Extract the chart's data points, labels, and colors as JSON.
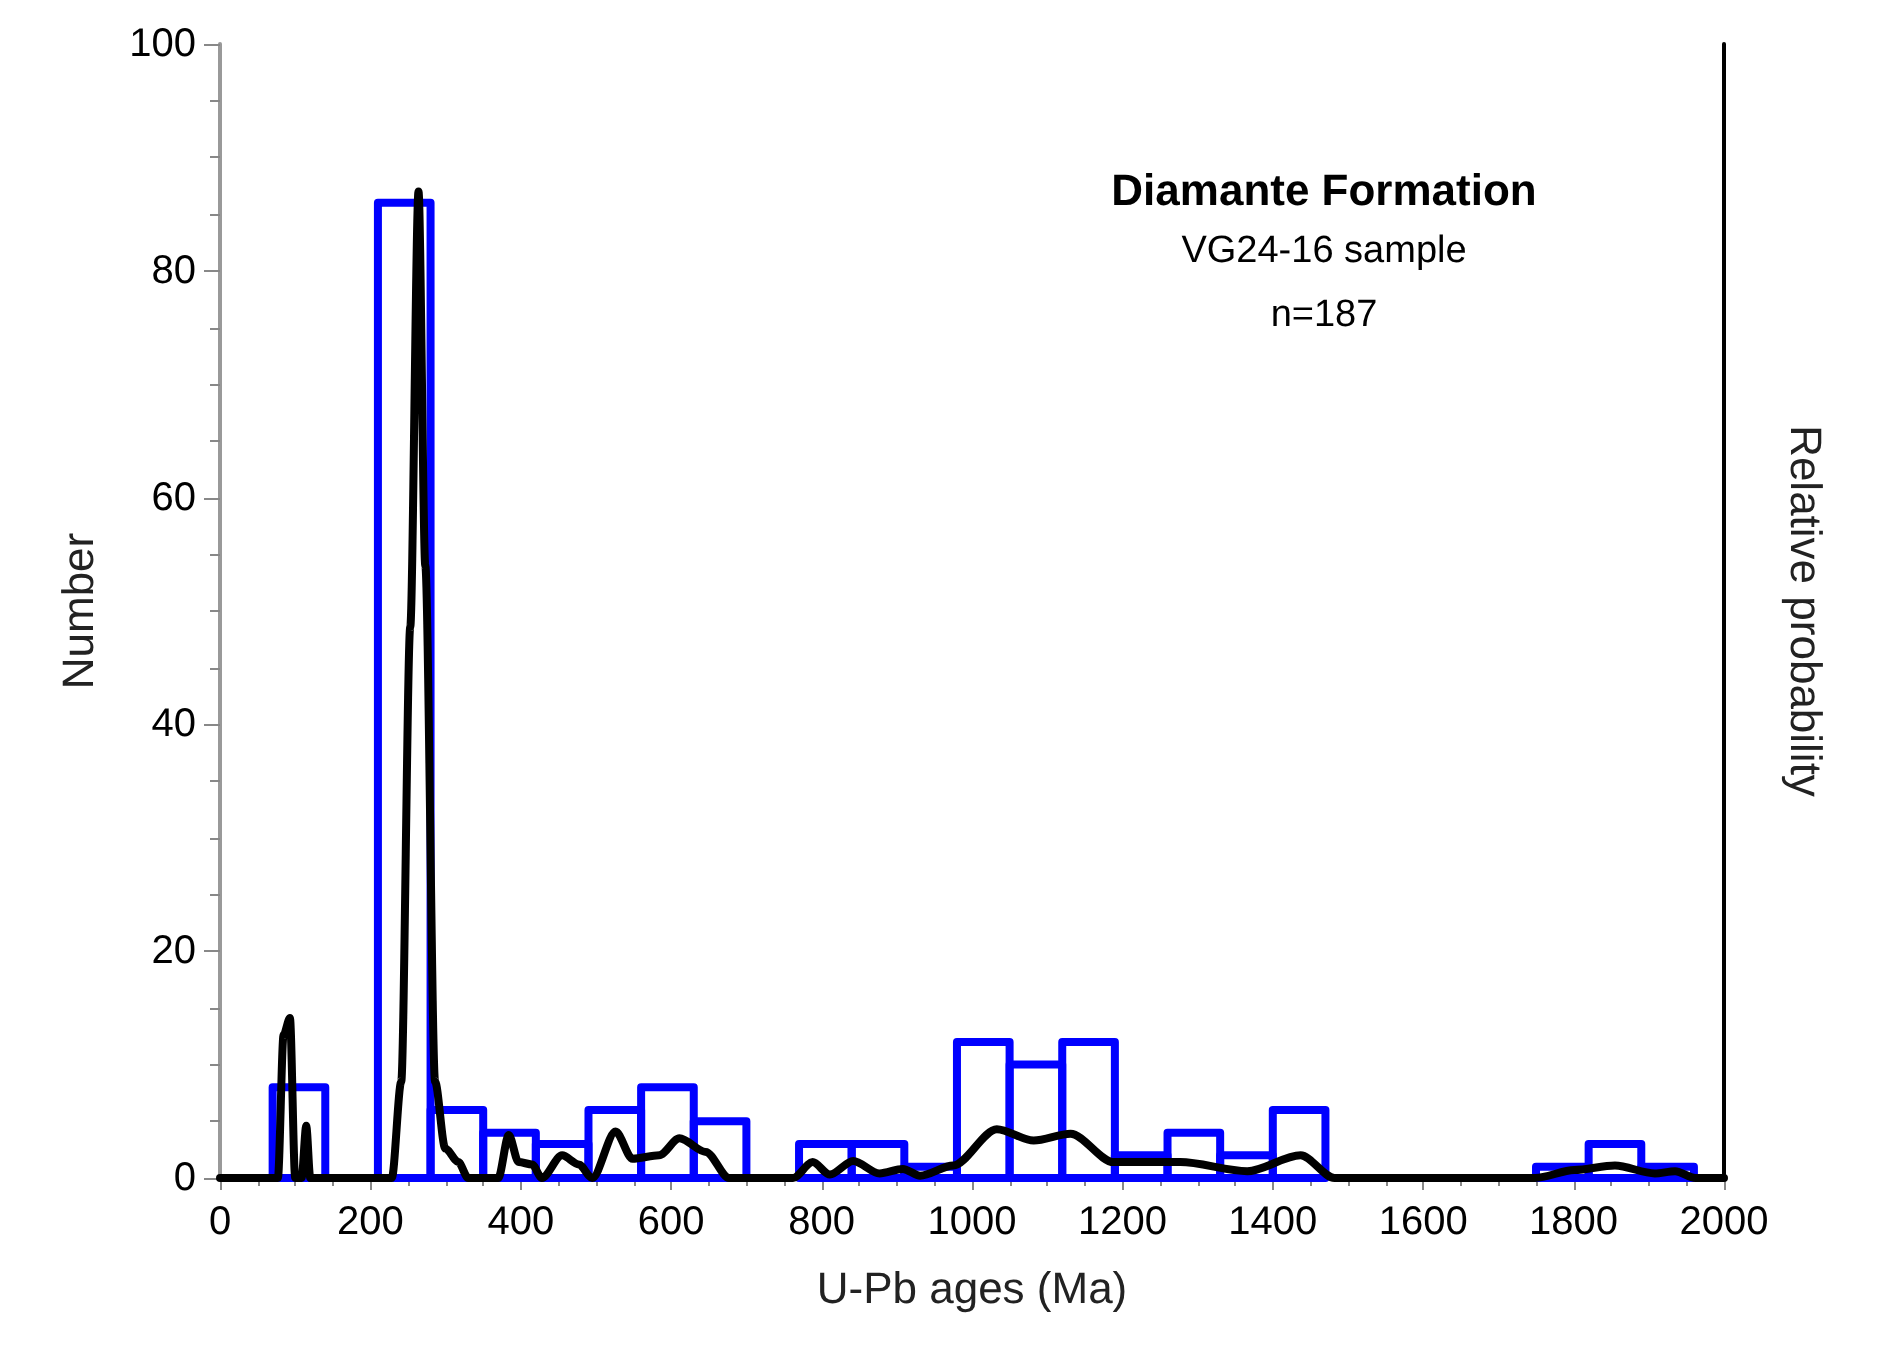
{
  "chart_data": {
    "type": "histogram",
    "annotations": [
      "Diamante Formation",
      "VG24-16 sample",
      "n=187"
    ],
    "xlabel": "U-Pb ages (Ma)",
    "ylabel": "Number",
    "y2label": "Relative probability",
    "bins": [
      0,
      70,
      140,
      210,
      280,
      350,
      420,
      490,
      560,
      630,
      700,
      770,
      840,
      910,
      980,
      1050,
      1120,
      1190,
      1260,
      1330,
      1400,
      1470,
      1540,
      1610,
      1680,
      1750,
      1820,
      1890,
      1960
    ],
    "values": [
      0,
      8,
      0,
      86,
      6,
      4,
      3,
      6,
      8,
      5,
      0,
      3,
      3,
      1,
      12,
      10,
      12,
      2,
      4,
      2,
      6,
      0,
      0,
      0,
      0,
      1,
      3,
      1
    ],
    "color": "#0000ff",
    "series": [
      {
        "type": "line",
        "color": "#000000",
        "x": [
          0,
          77,
          84.5,
          93,
          100,
          108.5,
          114.7,
          120,
          228.5,
          241,
          253,
          264,
          273,
          286,
          299.5,
          317,
          330,
          370,
          384,
          397,
          415,
          428,
          455,
          477,
          495,
          526,
          548.5,
          584,
          611,
          646,
          677,
          762,
          788,
          811,
          842,
          877,
          908,
          931,
          975,
          1033,
          1082,
          1131,
          1188,
          1277,
          1366,
          1437,
          1482,
          1749,
          1801,
          1855,
          1908,
          1935,
          1962,
          2000
        ],
        "values": [
          0,
          0,
          12.6,
          14.1,
          0,
          0,
          4.6,
          0,
          0,
          8.5,
          48.6,
          87,
          54,
          8.5,
          2.6,
          1.4,
          0,
          0,
          3.8,
          1.4,
          1.2,
          0,
          2,
          1.2,
          0,
          4.1,
          1.7,
          2,
          3.5,
          2.3,
          0,
          0,
          1.4,
          0.3,
          1.5,
          0.4,
          0.8,
          0.2,
          1.1,
          4.3,
          3.3,
          3.9,
          1.4,
          1.4,
          0.6,
          2,
          0,
          0,
          0.7,
          1.1,
          0.4,
          0.6,
          0,
          0
        ]
      }
    ],
    "xlim": [
      0,
      2000
    ],
    "xticks": [
      0,
      200,
      400,
      600,
      800,
      1000,
      1200,
      1400,
      1600,
      1800,
      2000
    ],
    "ylim": [
      0,
      100
    ],
    "yticks": [
      0,
      20,
      40,
      60,
      80,
      100
    ],
    "grid": false,
    "line_style": "solid",
    "marker": "none"
  }
}
